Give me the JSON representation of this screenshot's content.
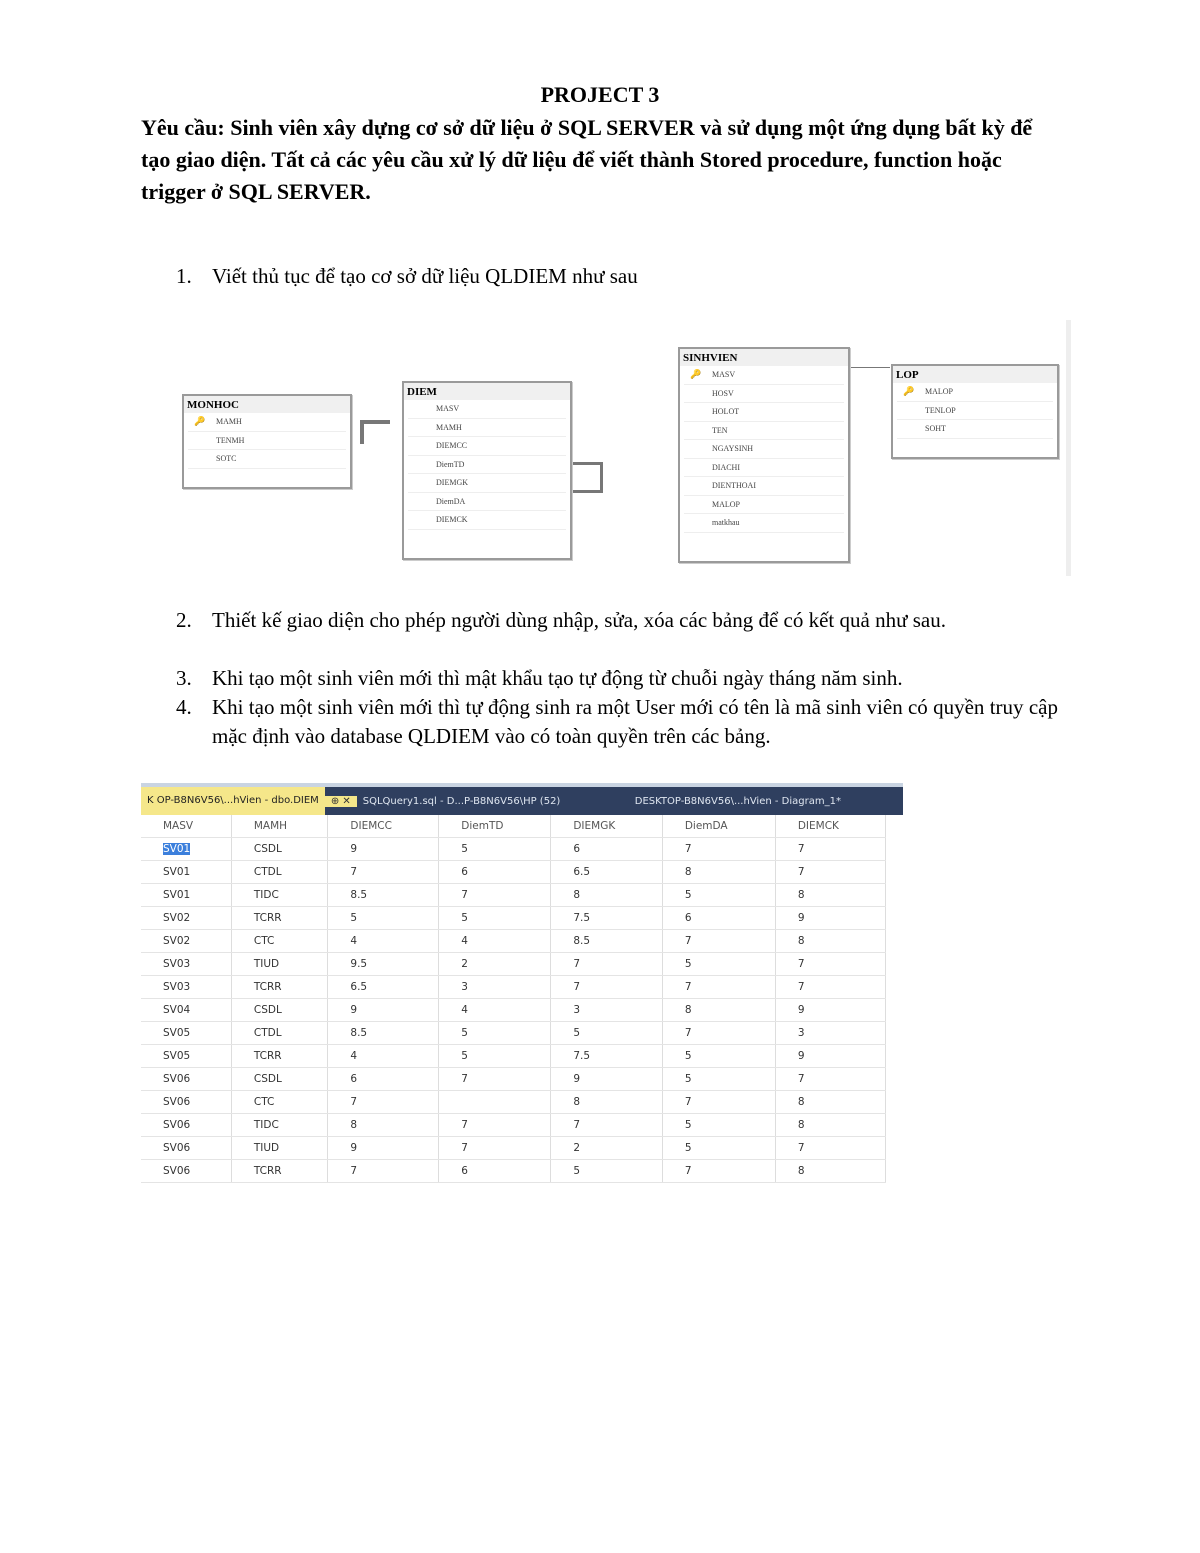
{
  "title": "PROJECT 3",
  "requirement": "Yêu cầu: Sinh viên xây dựng cơ sở dữ liệu ở SQL SERVER và sử dụng một ứng dụng bất kỳ để tạo giao diện. Tất cả các yêu cầu xử lý dữ liệu để viết thành Stored procedure, function hoặc trigger ở SQL SERVER.",
  "items": [
    {
      "n": "1.",
      "text": "Viết thủ tục để tạo cơ sở dữ liệu QLDIEM như sau"
    },
    {
      "n": "2.",
      "text": "Thiết kế giao diện cho phép người dùng nhập, sửa, xóa các bảng để có kết quả như sau."
    },
    {
      "n": "3.",
      "text": "Khi tạo một sinh viên mới thì mật khẩu tạo tự động từ chuỗi ngày tháng năm sinh."
    },
    {
      "n": "4.",
      "text": "Khi tạo một sinh viên mới thì tự động sinh ra một User mới có tên là mã sinh viên có quyền truy cập mặc định vào database QLDIEM vào có toàn quyền trên các bảng."
    }
  ],
  "diagram": {
    "monhoc": {
      "name": "MONHOC",
      "fields": [
        "MAMH",
        "TENMH",
        "SOTC"
      ]
    },
    "diem": {
      "name": "DIEM",
      "fields": [
        "MASV",
        "MAMH",
        "DIEMCC",
        "DiemTD",
        "DIEMGK",
        "DiemDA",
        "DIEMCK"
      ]
    },
    "sinhvien": {
      "name": "SINHVIEN",
      "fields": [
        "MASV",
        "HOSV",
        "HOLOT",
        "TEN",
        "NGAYSINH",
        "DIACHI",
        "DIENTHOAI",
        "MALOP",
        "matkhau"
      ]
    },
    "lop": {
      "name": "LOP",
      "fields": [
        "MALOP",
        "TENLOP",
        "SOHT"
      ]
    }
  },
  "grid": {
    "tabs": [
      "K OP-B8N6V56\\...hVien - dbo.DIEM",
      "SQLQuery1.sql - D...P-B8N6V56\\HP (52)",
      "DESKTOP-B8N6V56\\...hVien - Diagram_1*"
    ],
    "columns": [
      "MASV",
      "MAMH",
      "DIEMCC",
      "DiemTD",
      "DIEMGK",
      "DiemDA",
      "DIEMCK"
    ],
    "rows": [
      [
        "SV01",
        "CSDL",
        "9",
        "5",
        "6",
        "7",
        "7"
      ],
      [
        "SV01",
        "CTDL",
        "7",
        "6",
        "6.5",
        "8",
        "7"
      ],
      [
        "SV01",
        "TIDC",
        "8.5",
        "7",
        "8",
        "5",
        "8"
      ],
      [
        "SV02",
        "TCRR",
        "5",
        "5",
        "7.5",
        "6",
        "9"
      ],
      [
        "SV02",
        "CTC",
        "4",
        "4",
        "8.5",
        "7",
        "8"
      ],
      [
        "SV03",
        "TIUD",
        "9.5",
        "2",
        "7",
        "5",
        "7"
      ],
      [
        "SV03",
        "TCRR",
        "6.5",
        "3",
        "7",
        "7",
        "7"
      ],
      [
        "SV04",
        "CSDL",
        "9",
        "4",
        "3",
        "8",
        "9"
      ],
      [
        "SV05",
        "CTDL",
        "8.5",
        "5",
        "5",
        "7",
        "3"
      ],
      [
        "SV05",
        "TCRR",
        "4",
        "5",
        "7.5",
        "5",
        "9"
      ],
      [
        "SV06",
        "CSDL",
        "6",
        "7",
        "9",
        "5",
        "7"
      ],
      [
        "SV06",
        "CTC",
        "7",
        "",
        "8",
        "7",
        "8"
      ],
      [
        "SV06",
        "TIDC",
        "8",
        "7",
        "7",
        "5",
        "8"
      ],
      [
        "SV06",
        "TIUD",
        "9",
        "7",
        "2",
        "5",
        "7"
      ],
      [
        "SV06",
        "TCRR",
        "7",
        "6",
        "5",
        "7",
        "8"
      ]
    ]
  }
}
